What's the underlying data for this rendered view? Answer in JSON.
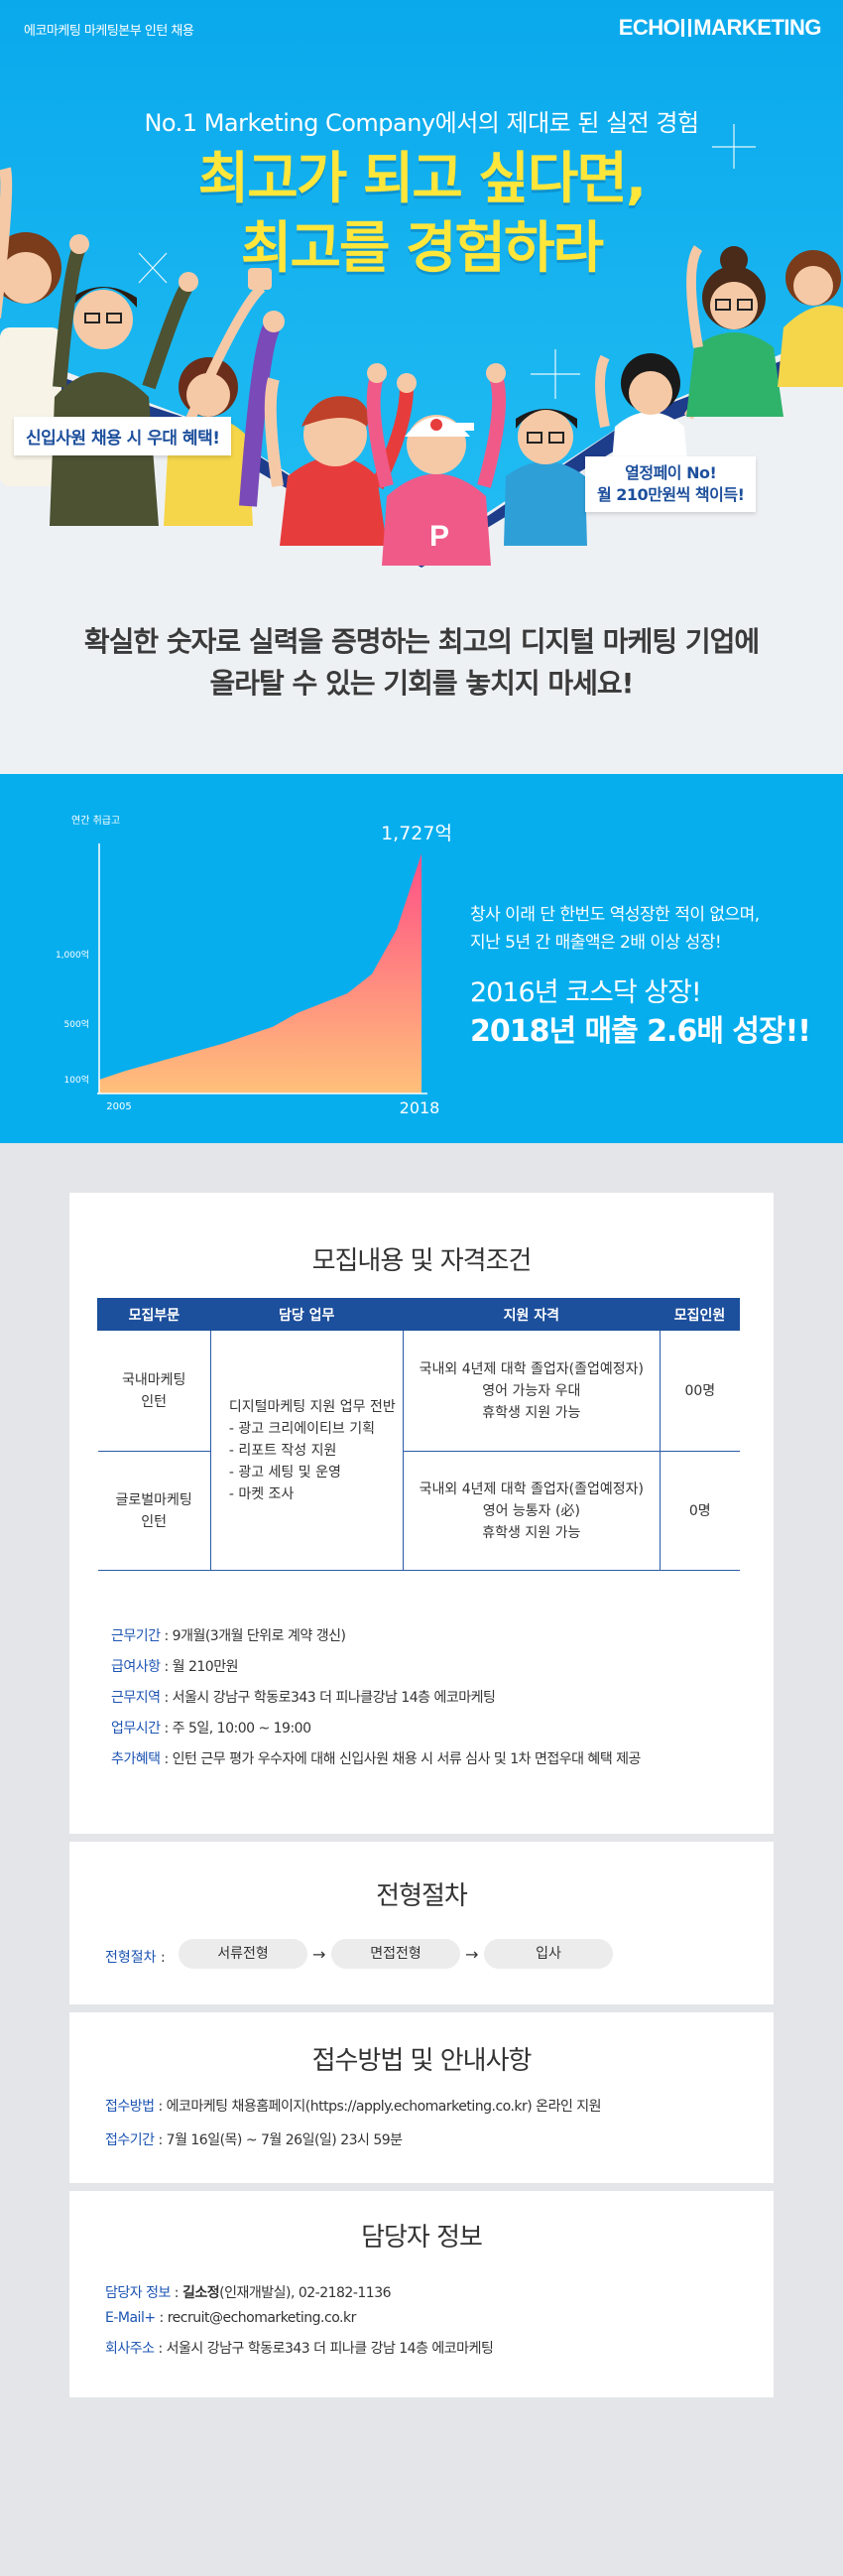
{
  "header": {
    "left_text": "에코마케팅 마케팅본부 인턴 채용",
    "logo_part1": "ECHO",
    "logo_part2": "MARKETING"
  },
  "hero": {
    "subtitle": "No.1 Marketing Company에서의 제대로 된 실전 경험",
    "title_line1": "최고가 되고 싶다면,",
    "title_line2": "최고를 경험하라",
    "badge_left": "신입사원 채용 시 우대 혜택!",
    "badge_right_line1": "열정페이 No!",
    "badge_right_line2": "월 210만원씩 책이득!",
    "message_line1": "확실한 숫자로 실력을 증명하는 최고의 디지털 마케팅 기업에",
    "message_line2": "올라탈 수 있는 기회를 놓치지 마세요!",
    "colors": {
      "sky": "#06aeee",
      "title_yellow": "#ffe63b",
      "badge_text": "#1d4f9c"
    }
  },
  "chart_data": {
    "type": "area",
    "title": "연간 취급고",
    "x_start_label": "2005",
    "x_end_label": "2018",
    "y_ticks": [
      {
        "value": 100,
        "label": "100억"
      },
      {
        "value": 500,
        "label": "500억"
      },
      {
        "value": 1000,
        "label": "1,000억"
      }
    ],
    "end_value_label": "1,727억",
    "x": [
      2005,
      2006,
      2007,
      2008,
      2009,
      2010,
      2011,
      2012,
      2013,
      2014,
      2015,
      2016,
      2017,
      2018
    ],
    "values": [
      100,
      160,
      210,
      260,
      310,
      360,
      420,
      480,
      580,
      650,
      720,
      860,
      1180,
      1727
    ],
    "ylim": [
      0,
      1800
    ],
    "gradient": [
      "#ffb07a",
      "#ff5c8a"
    ]
  },
  "band": {
    "copy_line1": "창사 이래 단 한번도 역성장한 적이 없으며,",
    "copy_line2": "지난 5년 간 매출액은 2배 이상 성장!",
    "highlight1": "2016년 코스닥 상장!",
    "highlight2": "2018년 매출 2.6배 성장!!"
  },
  "recruit": {
    "title": "모집내용 및 자격조건",
    "headers": [
      "모집부문",
      "담당 업무",
      "지원 자격",
      "모집인원"
    ],
    "duty_lines": [
      "디지털마케팅 지원 업무 전반",
      "- 광고 크리에이티브 기획",
      "- 리포트 작성 지원",
      "- 광고 세팅 및 운영",
      "- 마켓 조사"
    ],
    "rows": [
      {
        "dept_line1": "국내마케팅",
        "dept_line2": "인턴",
        "qual_line1": "국내외 4년제 대학 졸업자(졸업예정자)",
        "qual_line2": "영어 가능자 우대",
        "qual_line3": "휴학생 지원 가능",
        "count": "00명"
      },
      {
        "dept_line1": "글로벌마케팅",
        "dept_line2": "인턴",
        "qual_line1": "국내외 4년제 대학 졸업자(졸업예정자)",
        "qual_line2": "영어 능통자 (必)",
        "qual_line3": "휴학생 지원 가능",
        "count": "0명"
      }
    ],
    "info": [
      {
        "key": "근무기간",
        "value": "9개월(3개월 단위로 계약 갱신)"
      },
      {
        "key": "급여사항",
        "value": "월 210만원"
      },
      {
        "key": "근무지역",
        "value": "서울시 강남구 학동로343 더 피나클강남 14층 에코마케팅"
      },
      {
        "key": "업무시간",
        "value": "주 5일, 10:00 ~ 19:00"
      },
      {
        "key": "추가혜택",
        "value": "인턴 근무 평가 우수자에 대해 신입사원 채용 시 서류 심사 및 1차 면접우대 혜택 제공"
      }
    ]
  },
  "process": {
    "title": "전형절차",
    "label": "전형절차",
    "steps": [
      "서류전형",
      "면접전형",
      "입사"
    ],
    "arrow": "→"
  },
  "apply": {
    "title": "접수방법 및 안내사항",
    "method_key": "접수방법",
    "method_value": "에코마케팅 채용홈페이지(https://apply.echomarketing.co.kr) 온라인 지원",
    "period_key": "접수기간",
    "period_value": "7월 16일(목) ~ 7월 26일(일) 23시 59분"
  },
  "contact": {
    "title": "담당자 정보",
    "person_key": "담당자 정보",
    "person_name": "길소정",
    "person_rest": "(인재개발실), 02-2182-1136",
    "mail_key": "E-Mail+",
    "mail_value": "recruit@echomarketing.co.kr",
    "addr_key": "회사주소",
    "addr_value": "서울시 강남구 학동로343 더 피나클 강남 14층 에코마케팅"
  }
}
